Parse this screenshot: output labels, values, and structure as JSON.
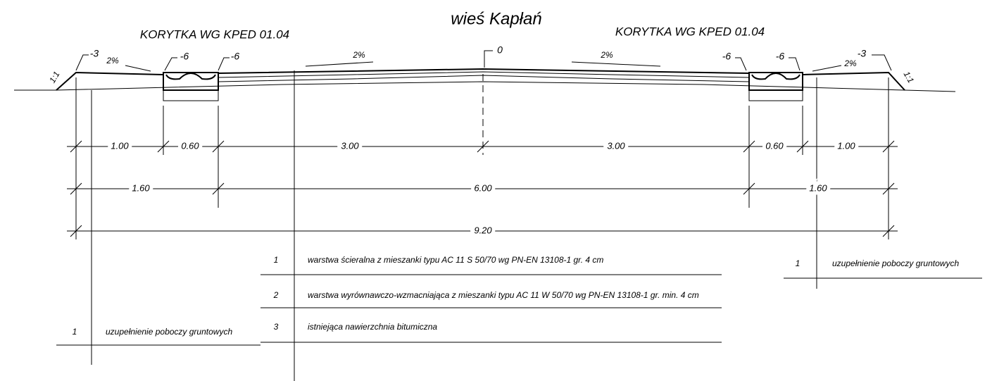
{
  "title": "wieś Kapłań",
  "labels": {
    "korytka": [
      "KORYTKA WG KPED 01.04",
      "KORYTKA WG KPED 01.04"
    ],
    "slopes": [
      "2%",
      "2%",
      "2%",
      "2%"
    ],
    "embankment": [
      "1:1",
      "1:1"
    ],
    "elevations": [
      "-3",
      "-6",
      "-6",
      "0",
      "-6",
      "-6",
      "-3"
    ]
  },
  "dimensions": [
    [
      "1.00",
      "0.60",
      "3.00",
      "3.00",
      "0.60",
      "1.00"
    ],
    [
      "1.60",
      "6.00",
      "1.60"
    ],
    [
      "9.20"
    ]
  ],
  "layers": [
    {
      "number": "1",
      "text": "warstwa ścieralna z mieszanki typu AC 11 S 50/70 wg PN-EN 13108-1 gr. 4 cm"
    },
    {
      "number": "2",
      "text": "warstwa wyrównawczo-wzmacniająca z mieszanki typu AC 11 W 50/70 wg PN-EN 13108-1 gr. min. 4 cm"
    },
    {
      "number": "3",
      "text": "istniejąca nawierzchnia bitumiczna"
    }
  ],
  "shoulder_notes": [
    {
      "number": "1",
      "text": "uzupełnienie poboczy gruntowych"
    },
    {
      "number": "1",
      "text": "uzupełnienie poboczy gruntowych"
    }
  ]
}
